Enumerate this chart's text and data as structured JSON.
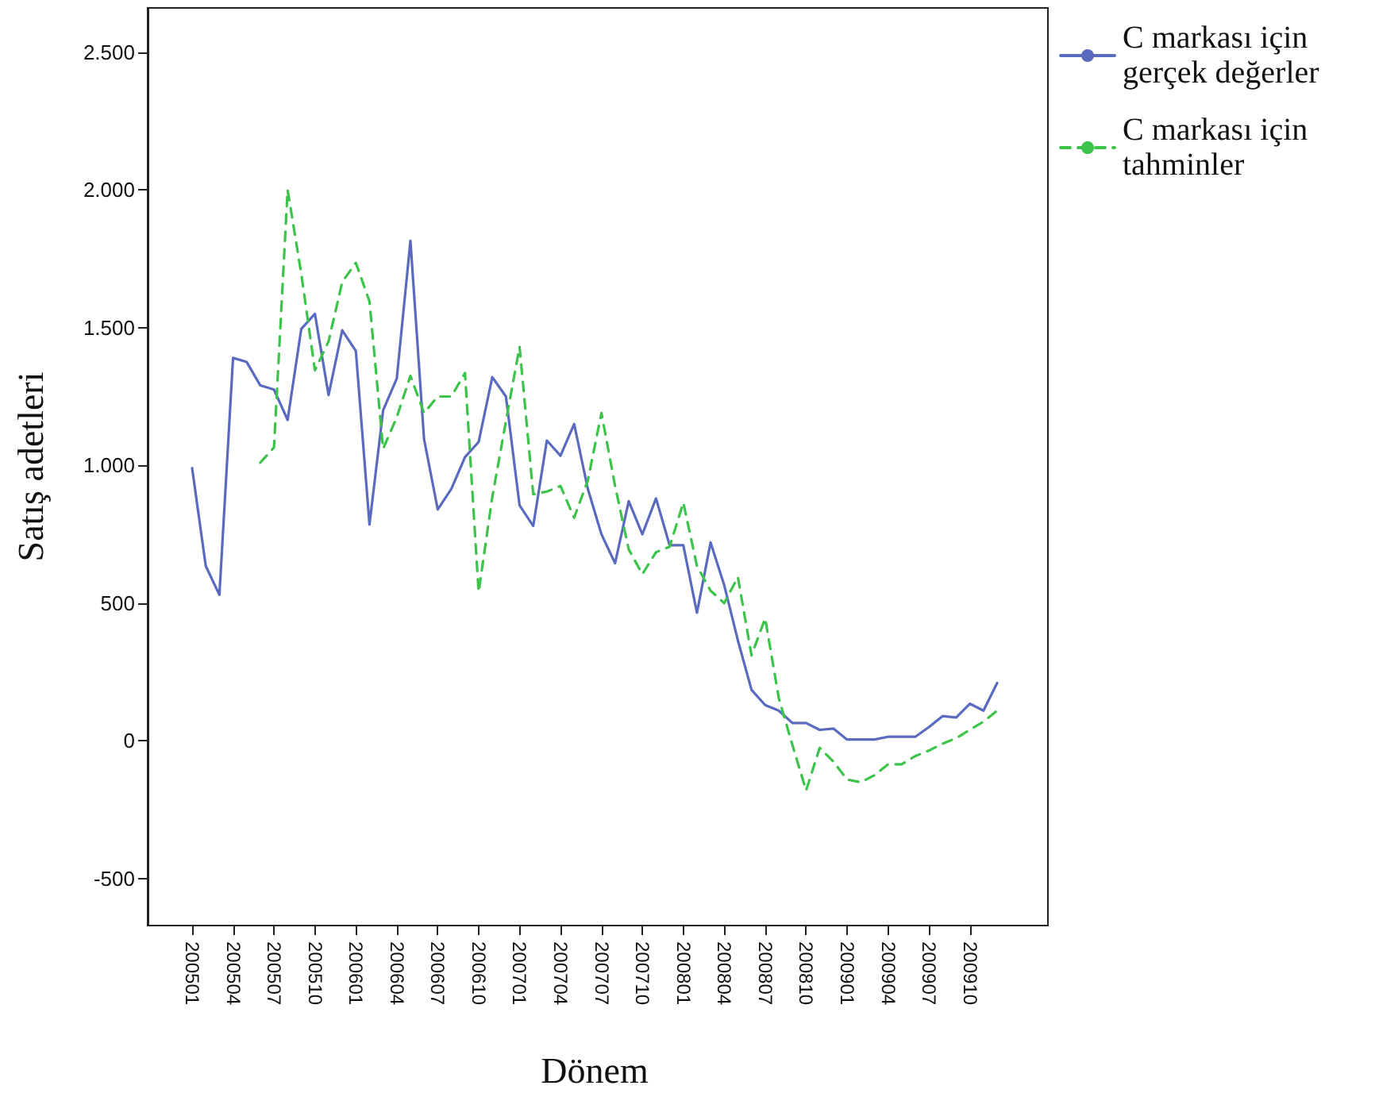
{
  "chart_data": {
    "type": "line",
    "xlabel": "Dönem",
    "ylabel": "Satış adetleri",
    "categories": [
      "200501",
      null,
      null,
      "200504",
      null,
      null,
      "200507",
      null,
      null,
      "200510",
      null,
      null,
      "200601",
      null,
      null,
      "200604",
      null,
      null,
      "200607",
      null,
      null,
      "200610",
      null,
      null,
      "200701",
      null,
      null,
      "200704",
      null,
      null,
      "200707",
      null,
      null,
      "200710",
      null,
      null,
      "200801",
      null,
      null,
      "200804",
      null,
      null,
      "200807",
      null,
      null,
      "200810",
      null,
      null,
      "200901",
      null,
      null,
      "200904",
      null,
      null,
      "200907",
      null,
      null,
      "200910",
      null,
      null
    ],
    "series": [
      {
        "name": "C markası için gerçek değerler",
        "color": "#5a6bbf",
        "line_style": "solid",
        "values": [
          990,
          635,
          530,
          1390,
          1375,
          1290,
          1275,
          1165,
          1495,
          1550,
          1255,
          1490,
          1415,
          785,
          1200,
          1315,
          1815,
          1095,
          840,
          915,
          1030,
          1085,
          1320,
          1250,
          855,
          780,
          1090,
          1035,
          1150,
          915,
          750,
          645,
          870,
          750,
          880,
          710,
          710,
          465,
          720,
          565,
          365,
          185,
          130,
          110,
          65,
          65,
          40,
          45,
          5,
          5,
          5,
          15,
          15,
          15,
          50,
          90,
          85,
          135,
          110,
          210
        ]
      },
      {
        "name": "C markası için tahminler",
        "color": "#3cc44a",
        "line_style": "dashed",
        "values": [
          null,
          null,
          null,
          null,
          null,
          1010,
          1065,
          2000,
          1695,
          1345,
          1450,
          1665,
          1735,
          1595,
          1060,
          1175,
          1325,
          1190,
          1250,
          1250,
          1335,
          540,
          885,
          1160,
          1430,
          895,
          905,
          925,
          810,
          945,
          1190,
          925,
          695,
          605,
          685,
          705,
          865,
          635,
          545,
          500,
          595,
          310,
          445,
          155,
          -15,
          -180,
          -25,
          -75,
          -140,
          -150,
          -125,
          -85,
          -85,
          -55,
          -35,
          -10,
          10,
          40,
          70,
          110
        ]
      }
    ],
    "ylim": [
      -670,
      2660
    ],
    "yticks": [
      {
        "value": -500,
        "label": "-500"
      },
      0,
      500,
      {
        "value": 1000,
        "label": "1.000"
      },
      {
        "value": 1500,
        "label": "1.500"
      },
      {
        "value": 2000,
        "label": "2.000"
      },
      {
        "value": 2500,
        "label": "2.500"
      }
    ],
    "grid": false,
    "legend": "top right",
    "marker": "none"
  }
}
